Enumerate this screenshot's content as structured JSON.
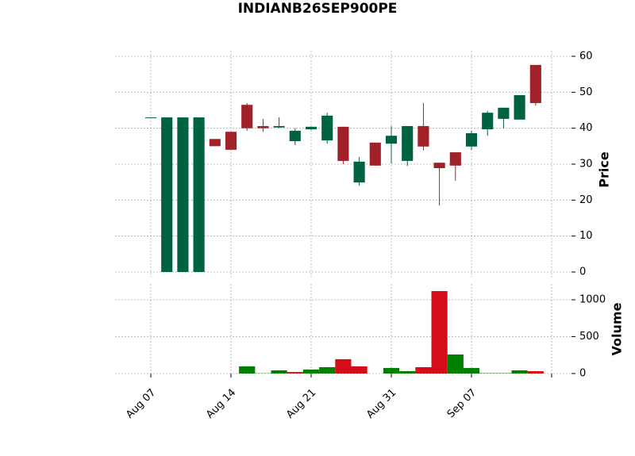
{
  "chart_data": {
    "type": "candlestick",
    "title": "INDIANB26SEP900PE",
    "categories": [
      "Aug 07",
      null,
      null,
      null,
      null,
      "Aug 14",
      null,
      null,
      null,
      null,
      "Aug 21",
      null,
      null,
      null,
      null,
      "Aug 31",
      null,
      null,
      null,
      null,
      "Sep 07",
      null,
      null,
      null,
      null
    ],
    "open": [
      43,
      0,
      0,
      0,
      37,
      39,
      46.5,
      40.6,
      40.2,
      36.4,
      39.7,
      36.6,
      40.4,
      24.9,
      36,
      35.7,
      30.9,
      40.6,
      30.4,
      33.3,
      34.9,
      39.7,
      42.6,
      42.4,
      57.6
    ],
    "high": [
      43,
      43,
      43,
      43,
      37,
      39,
      47,
      42.6,
      43,
      40,
      40.5,
      44.3,
      40.4,
      32,
      36,
      40.6,
      40.6,
      47,
      30.4,
      33.3,
      39.3,
      44.8,
      45.7,
      49.2,
      57.6
    ],
    "low": [
      43,
      0,
      0,
      0,
      35,
      34,
      39.3,
      39,
      40,
      35.3,
      39.5,
      35.7,
      30,
      24,
      29.6,
      30.2,
      29.5,
      33.8,
      18.5,
      25.4,
      34,
      37.9,
      40,
      42.4,
      46.3
    ],
    "close": [
      43,
      43,
      43,
      43,
      35,
      34,
      40,
      40,
      40.6,
      39.3,
      40.4,
      43.5,
      30.9,
      30.7,
      29.6,
      37.9,
      40.6,
      34.9,
      28.9,
      29.6,
      38.6,
      44.3,
      45.7,
      49.2,
      47
    ],
    "up_color": "#006340",
    "down_color": "#a02128",
    "ylabel": "Price",
    "ylim": [
      -1.5,
      61.5
    ],
    "yticks": [
      0,
      10,
      20,
      30,
      40,
      50,
      60
    ],
    "grid": true,
    "volume": {
      "ylabel": "Volume",
      "ylim": [
        0,
        1215
      ],
      "yticks": [
        0,
        500,
        1000
      ],
      "values": [
        0,
        0,
        0,
        0,
        0,
        0,
        97,
        3,
        43,
        20,
        54,
        86,
        194,
        97,
        0,
        75,
        32,
        86,
        1118,
        258,
        75,
        5,
        5,
        43,
        32
      ],
      "colors": [
        "#007f00",
        "#007f00",
        "#007f00",
        "#007f00",
        "#007f00",
        "#007f00",
        "#007f00",
        "#007f00",
        "#007f00",
        "#d50d18",
        "#007f00",
        "#007f00",
        "#d50d18",
        "#d50d18",
        "#007f00",
        "#007f00",
        "#007f00",
        "#d50d18",
        "#d50d18",
        "#007f00",
        "#007f00",
        "#007f00",
        "#007f00",
        "#007f00",
        "#d50d18"
      ]
    }
  }
}
